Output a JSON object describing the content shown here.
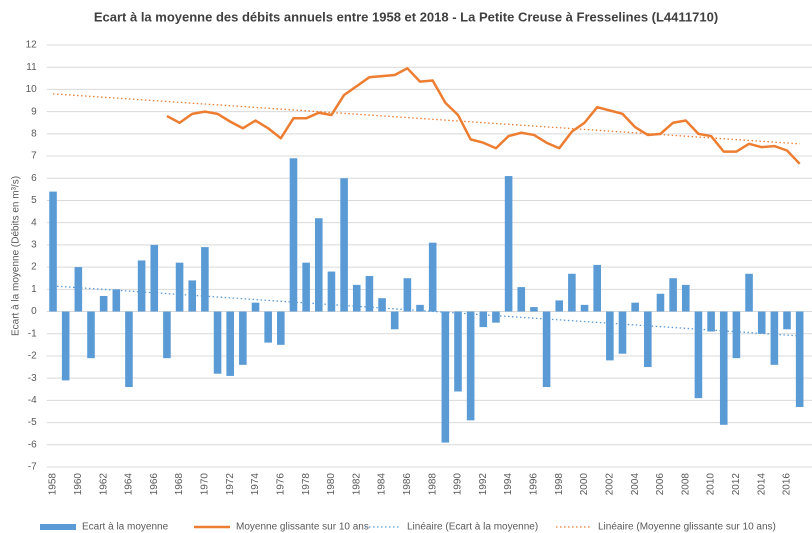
{
  "chart_data": {
    "type": "bar",
    "title": "Ecart à la moyenne des débits annuels entre 1958 et 2018 - La Petite Creuse à Fresselines (L4411710)",
    "y_label": "Ecart à la moyenne (Débits en m³/s)",
    "categories": [
      "1958",
      null,
      "1960",
      null,
      "1962",
      null,
      "1964",
      null,
      "1966",
      null,
      "1968",
      null,
      "1970",
      null,
      "1972",
      null,
      "1974",
      null,
      "1976",
      null,
      "1978",
      null,
      "1980",
      null,
      "1982",
      null,
      "1984",
      null,
      "1986",
      null,
      "1988",
      null,
      "1990",
      null,
      "1992",
      null,
      "1994",
      null,
      "1996",
      null,
      "1998",
      null,
      "2000",
      null,
      "2002",
      null,
      "2004",
      null,
      "2006",
      null,
      "2008",
      null,
      "2010",
      null,
      "2012",
      null,
      "2014",
      null,
      "2016",
      null
    ],
    "series": [
      {
        "name": "Ecart à la moyenne",
        "type": "bar",
        "color": "#5b9bd5",
        "values": [
          5.4,
          -3.1,
          2.0,
          -2.1,
          0.7,
          1.0,
          -3.4,
          2.3,
          3.0,
          -2.1,
          2.2,
          1.4,
          2.9,
          -2.8,
          -2.9,
          -2.4,
          0.4,
          -1.4,
          -1.5,
          6.9,
          2.2,
          4.2,
          1.8,
          6.0,
          1.2,
          1.6,
          0.6,
          -0.8,
          1.5,
          0.3,
          3.1,
          -5.9,
          -3.6,
          -4.9,
          -0.7,
          -0.5,
          6.1,
          1.1,
          0.2,
          -3.4,
          0.5,
          1.7,
          0.3,
          2.1,
          -2.2,
          -1.9,
          0.4,
          -2.5,
          0.8,
          1.5,
          1.2,
          -3.9,
          -0.9,
          -5.1,
          -2.1,
          1.7,
          -1.0,
          -2.4,
          -0.8,
          -4.3
        ]
      },
      {
        "name": "Moyenne glissante sur 10 ans",
        "type": "line",
        "color": "#ed7d31",
        "values": [
          null,
          null,
          null,
          null,
          null,
          null,
          null,
          null,
          null,
          8.8,
          8.5,
          8.9,
          9.0,
          8.9,
          8.55,
          8.25,
          8.6,
          8.25,
          7.8,
          8.7,
          8.7,
          8.95,
          8.85,
          9.75,
          10.15,
          10.55,
          10.6,
          10.65,
          10.95,
          10.35,
          10.4,
          9.4,
          8.85,
          7.75,
          7.6,
          7.35,
          7.9,
          8.05,
          7.95,
          7.6,
          7.35,
          8.1,
          8.5,
          9.2,
          9.05,
          8.9,
          8.3,
          7.95,
          8.0,
          8.5,
          8.6,
          8.0,
          7.9,
          7.2,
          7.2,
          7.55,
          7.4,
          7.45,
          7.25,
          6.65
        ]
      }
    ],
    "trendlines": [
      {
        "name": "Linéaire (Ecart à la moyenne)",
        "color": "#5b9bd5",
        "values": [
          1.15,
          -1.1
        ]
      },
      {
        "name": "Linéaire (Moyenne glissante sur 10 ans)",
        "color": "#ed7d31",
        "values": [
          9.8,
          7.55
        ]
      }
    ],
    "ylim": [
      -7,
      12
    ],
    "yticks": [
      -7,
      -6,
      -5,
      -4,
      -3,
      -2,
      -1,
      0,
      1,
      2,
      3,
      4,
      5,
      6,
      7,
      8,
      9,
      10,
      11,
      12
    ],
    "grid": true
  }
}
